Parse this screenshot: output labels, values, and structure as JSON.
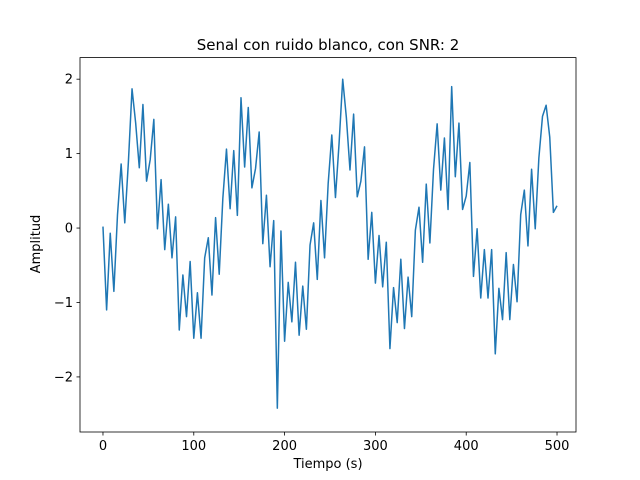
{
  "chart_data": {
    "type": "line",
    "title": "Senal con ruido blanco, con SNR: 2",
    "xlabel": "Tiempo (s)",
    "ylabel": "Amplitud",
    "xlim": [
      -25.3,
      520.9
    ],
    "ylim": [
      -2.74,
      2.29
    ],
    "xticks": [
      0,
      100,
      200,
      300,
      400,
      500
    ],
    "yticks": [
      {
        "value": -2,
        "label": "−2"
      },
      {
        "value": -1,
        "label": "−1"
      },
      0,
      1,
      2
    ],
    "grid": false,
    "x": [
      0,
      4,
      8,
      12,
      16,
      20,
      24,
      28,
      32,
      36,
      40,
      44,
      48,
      52,
      56,
      60,
      64,
      68,
      72,
      76,
      80,
      84,
      88,
      92,
      96,
      100,
      104,
      108,
      112,
      116,
      120,
      124,
      128,
      132,
      136,
      140,
      144,
      148,
      152,
      156,
      160,
      164,
      168,
      172,
      176,
      180,
      184,
      188,
      192,
      196,
      200,
      204,
      208,
      212,
      216,
      220,
      224,
      228,
      232,
      236,
      240,
      244,
      248,
      252,
      256,
      260,
      264,
      268,
      272,
      276,
      280,
      284,
      288,
      292,
      296,
      300,
      304,
      308,
      312,
      316,
      320,
      324,
      328,
      332,
      336,
      340,
      344,
      348,
      352,
      356,
      360,
      364,
      368,
      372,
      376,
      380,
      384,
      388,
      392,
      396,
      400,
      404,
      408,
      412,
      416,
      420,
      424,
      428,
      432,
      436,
      440,
      444,
      448,
      452,
      456,
      460,
      464,
      468,
      472,
      476,
      480,
      484,
      488,
      492,
      496,
      500
    ],
    "series": [
      {
        "color": "#1f77b4",
        "values": [
          0.02,
          -1.1,
          -0.07,
          -0.85,
          0.18,
          0.86,
          0.07,
          0.89,
          1.87,
          1.41,
          0.81,
          1.66,
          0.63,
          0.92,
          1.46,
          -0.01,
          0.65,
          -0.29,
          0.32,
          -0.4,
          0.15,
          -1.37,
          -0.63,
          -1.19,
          -0.45,
          -1.48,
          -0.87,
          -1.48,
          -0.4,
          -0.13,
          -0.9,
          0.14,
          -0.62,
          0.4,
          1.06,
          0.26,
          1.04,
          0.17,
          1.75,
          0.82,
          1.62,
          0.54,
          0.8,
          1.29,
          -0.21,
          0.44,
          -0.52,
          0.1,
          -2.42,
          -0.04,
          -1.52,
          -0.73,
          -1.26,
          -0.46,
          -1.44,
          -0.78,
          -1.36,
          -0.23,
          0.07,
          -0.69,
          0.37,
          -0.4,
          0.6,
          1.25,
          0.41,
          1.14,
          2.0,
          1.49,
          0.78,
          1.53,
          0.42,
          0.63,
          1.09,
          -0.42,
          0.21,
          -0.74,
          -0.1,
          -0.79,
          -0.19,
          -1.62,
          -0.8,
          -1.27,
          -0.42,
          -1.35,
          -0.66,
          -1.19,
          -0.03,
          0.28,
          -0.46,
          0.59,
          -0.2,
          0.79,
          1.4,
          0.51,
          1.21,
          0.25,
          1.9,
          0.69,
          1.41,
          0.25,
          0.43,
          0.88,
          -0.65,
          -0.01,
          -0.94,
          -0.29,
          -0.94,
          -0.29,
          -1.69,
          -0.81,
          -1.23,
          -0.33,
          -1.23,
          -0.49,
          -0.99,
          0.18,
          0.51,
          -0.24,
          0.79,
          -0.01,
          0.94,
          1.5,
          1.65,
          1.22,
          0.21,
          0.3
        ]
      }
    ]
  }
}
